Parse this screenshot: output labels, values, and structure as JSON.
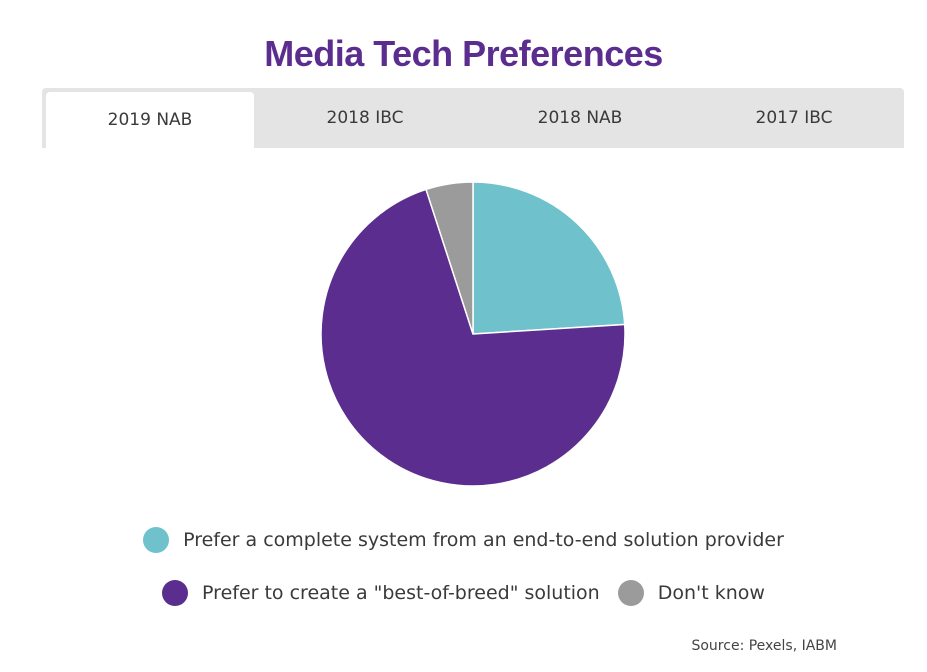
{
  "title": "Media Tech Preferences",
  "tabs": [
    {
      "label": "2019 NAB",
      "active": true
    },
    {
      "label": "2018 IBC",
      "active": false
    },
    {
      "label": "2018 NAB",
      "active": false
    },
    {
      "label": "2017 IBC",
      "active": false
    }
  ],
  "colors": {
    "title": "#5b2d8f",
    "tab_bar": "#e4e4e4",
    "slice_teal": "#6fc1cb",
    "slice_purple": "#5b2d8f",
    "slice_gray": "#9b9b9b"
  },
  "chart_data": {
    "type": "pie",
    "title": "Media Tech Preferences",
    "start": "12 o'clock, clockwise",
    "slices": [
      {
        "label": "Prefer a complete system from an end-to-end solution provider",
        "value": 24,
        "color": "#6fc1cb"
      },
      {
        "label": "Prefer to create a \"best-of-breed\" solution",
        "value": 71,
        "color": "#5b2d8f"
      },
      {
        "label": "Don't know",
        "value": 5,
        "color": "#9b9b9b"
      }
    ],
    "legend_position": "bottom"
  },
  "legend": {
    "row1": [
      {
        "label": "Prefer a complete system from an end-to-end solution provider",
        "color": "#6fc1cb"
      }
    ],
    "row2": [
      {
        "label": "Prefer to create a \"best-of-breed\" solution",
        "color": "#5b2d8f"
      },
      {
        "label": "Don't know",
        "color": "#9b9b9b"
      }
    ]
  },
  "source": "Source: Pexels, IABM"
}
